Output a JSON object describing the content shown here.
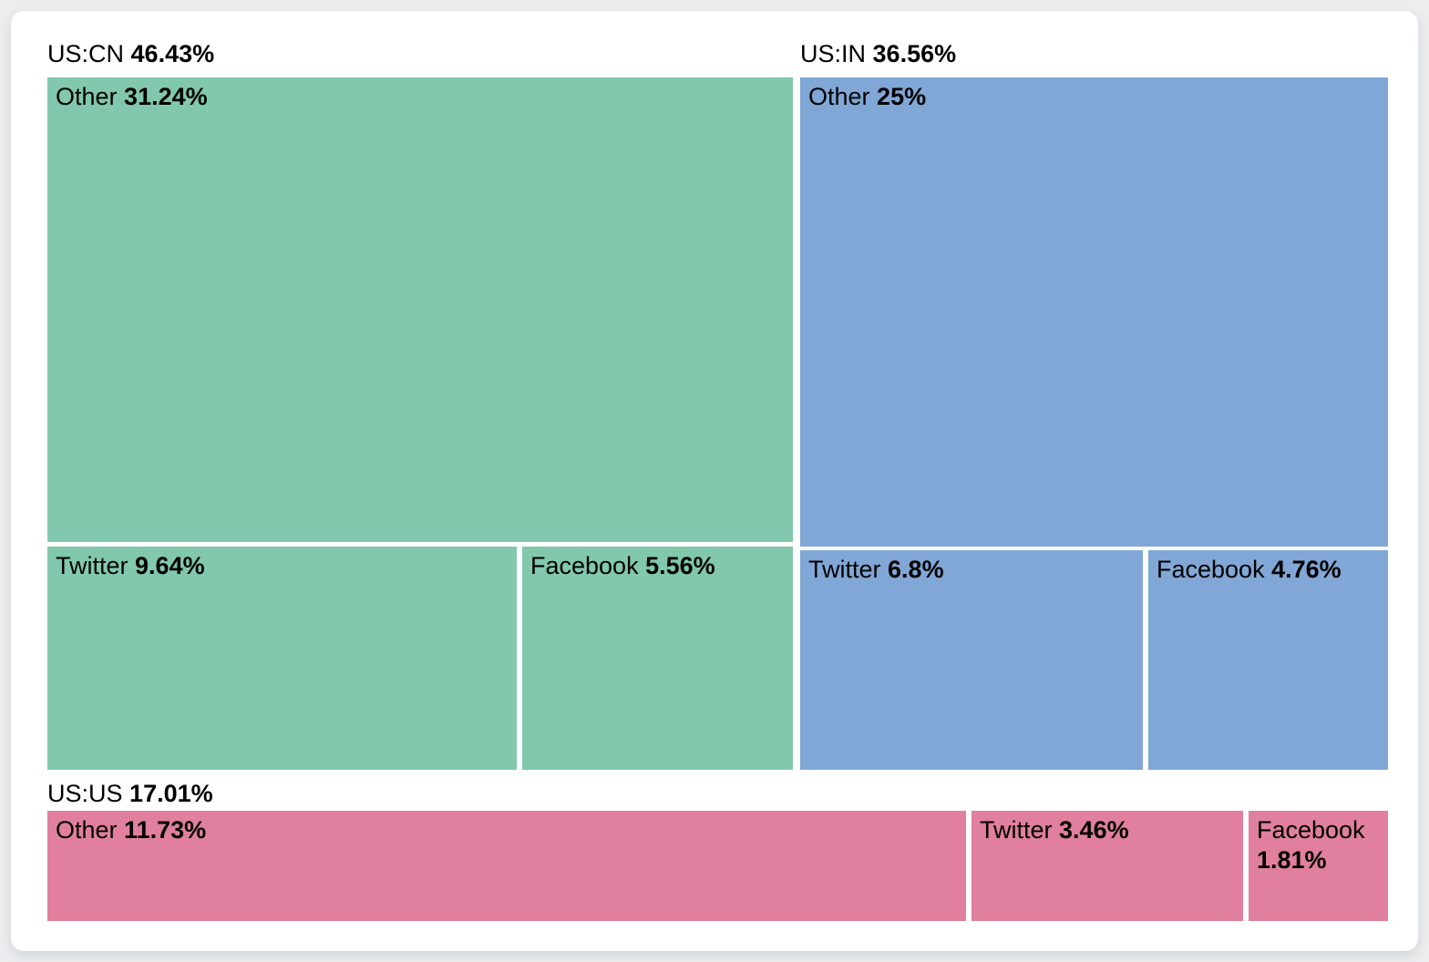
{
  "page": {
    "background_color": "#ecedef",
    "card_background_color": "#ffffff",
    "text_color": "#000000"
  },
  "chart_data": {
    "type": "treemap",
    "unit": "%",
    "legend_position": "none",
    "groups": [
      {
        "label": "US:CN",
        "pct_label": "46.43%",
        "value": 46.43,
        "color": "#81c8ad",
        "children": [
          {
            "label": "Other",
            "pct_label": "31.24%",
            "value": 31.24
          },
          {
            "label": "Twitter",
            "pct_label": "9.64%",
            "value": 9.64
          },
          {
            "label": "Facebook",
            "pct_label": "5.56%",
            "value": 5.56
          }
        ]
      },
      {
        "label": "US:IN",
        "pct_label": "36.56%",
        "value": 36.56,
        "color": "#80a7d6",
        "children": [
          {
            "label": "Other",
            "pct_label": "25%",
            "value": 25
          },
          {
            "label": "Twitter",
            "pct_label": "6.8%",
            "value": 6.8
          },
          {
            "label": "Facebook",
            "pct_label": "4.76%",
            "value": 4.76
          }
        ]
      },
      {
        "label": "US:US",
        "pct_label": "17.01%",
        "value": 17.01,
        "color": "#e07f9e",
        "children": [
          {
            "label": "Other",
            "pct_label": "11.73%",
            "value": 11.73
          },
          {
            "label": "Twitter",
            "pct_label": "3.46%",
            "value": 3.46
          },
          {
            "label": "Facebook",
            "pct_label": "1.81%",
            "value": 1.81
          }
        ]
      }
    ]
  }
}
